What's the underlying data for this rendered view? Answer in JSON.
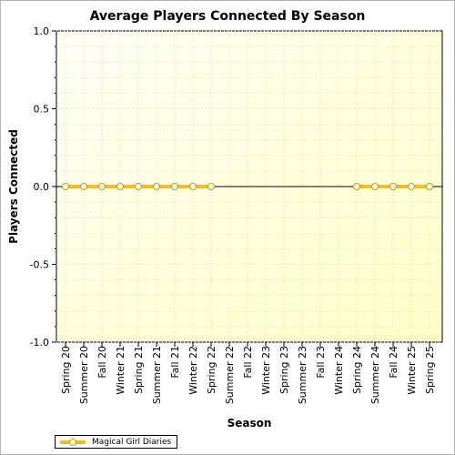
{
  "chart_data": {
    "type": "line",
    "title": "Average Players Connected By Season",
    "xlabel": "Season",
    "ylabel": "Players Connected",
    "ylim": [
      -1.0,
      1.0
    ],
    "y_ticks": [
      "1.0",
      "0.5",
      "0.0",
      "-0.5",
      "-1.0"
    ],
    "y_tick_values": [
      1.0,
      0.5,
      0.0,
      -0.5,
      -1.0
    ],
    "categories": [
      "Spring 20",
      "Summer 20",
      "Fall 20",
      "Winter 21",
      "Spring 21",
      "Summer 21",
      "Fall 21",
      "Winter 22",
      "Spring 22",
      "Summer 22",
      "Fall 22",
      "Winter 23",
      "Spring 23",
      "Summer 23",
      "Fall 23",
      "Winter 24",
      "Spring 24",
      "Summer 24",
      "Fall 24",
      "Winter 25",
      "Spring 25"
    ],
    "series": [
      {
        "name": "Magical Girl Diaries",
        "color": "#f2c200",
        "values": [
          0,
          0,
          0,
          0,
          0,
          0,
          0,
          0,
          0,
          null,
          null,
          null,
          null,
          null,
          null,
          null,
          0,
          0,
          0,
          0,
          0
        ]
      }
    ],
    "grid": true,
    "legend_position": "bottom-left",
    "colors": {
      "plot_background_top": "#fffffb",
      "plot_background_bottom": "#ffffcc",
      "series_line": "#f2c200"
    }
  }
}
